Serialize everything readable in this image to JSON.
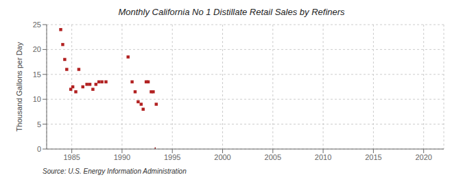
{
  "chart_data": {
    "type": "scatter",
    "title": "Monthly California No 1 Distillate Retail Sales by Refiners",
    "ylabel": "Thousand Gallons per Day",
    "source": "Source: U.S. Energy Information Administration",
    "xlim": [
      1982.5,
      2022
    ],
    "ylim": [
      0,
      25
    ],
    "xticks": [
      1985,
      1990,
      1995,
      2000,
      2005,
      2010,
      2015,
      2020
    ],
    "yticks": [
      0,
      5,
      10,
      15,
      20,
      25
    ],
    "grid": true,
    "series": [
      {
        "type": "scatter",
        "color": "#b22222",
        "marker": "square",
        "x": [
          1983.9,
          1984.1,
          1984.3,
          1984.5,
          1984.9,
          1985.1,
          1985.4,
          1985.7,
          1986.1,
          1986.5,
          1986.8,
          1987.1,
          1987.4,
          1987.7,
          1988.0,
          1988.4,
          1990.6,
          1991.0,
          1991.3,
          1991.6,
          1991.9,
          1992.1,
          1992.4,
          1992.6,
          1992.9,
          1993.1,
          1993.4
        ],
        "values": [
          24.0,
          21.0,
          18.0,
          16.0,
          12.0,
          12.5,
          11.5,
          16.0,
          12.5,
          13.0,
          13.0,
          12.0,
          13.0,
          13.5,
          13.5,
          13.5,
          18.5,
          13.5,
          11.5,
          9.5,
          9.0,
          8.0,
          13.5,
          13.5,
          11.5,
          11.5,
          9.0
        ]
      },
      {
        "type": "bar",
        "color": "#8b0000",
        "x": [
          1993.3
        ],
        "values": [
          0.35
        ]
      }
    ]
  }
}
